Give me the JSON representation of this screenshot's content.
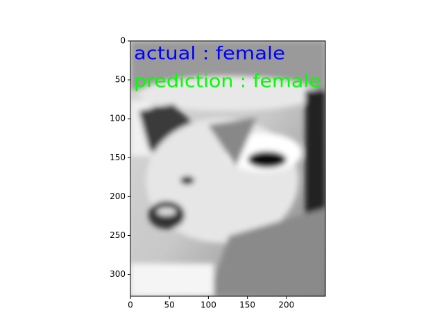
{
  "chart_data": {
    "type": "image",
    "annotations": [
      {
        "text": "actual : female",
        "color": "#0000ff"
      },
      {
        "text": "prediction : female",
        "color": "#00ff00"
      }
    ],
    "xlim": [
      0,
      250
    ],
    "ylim": [
      328,
      0
    ],
    "xticks": [
      0,
      50,
      100,
      150,
      200
    ],
    "yticks": [
      0,
      50,
      100,
      150,
      200,
      250,
      300
    ]
  }
}
